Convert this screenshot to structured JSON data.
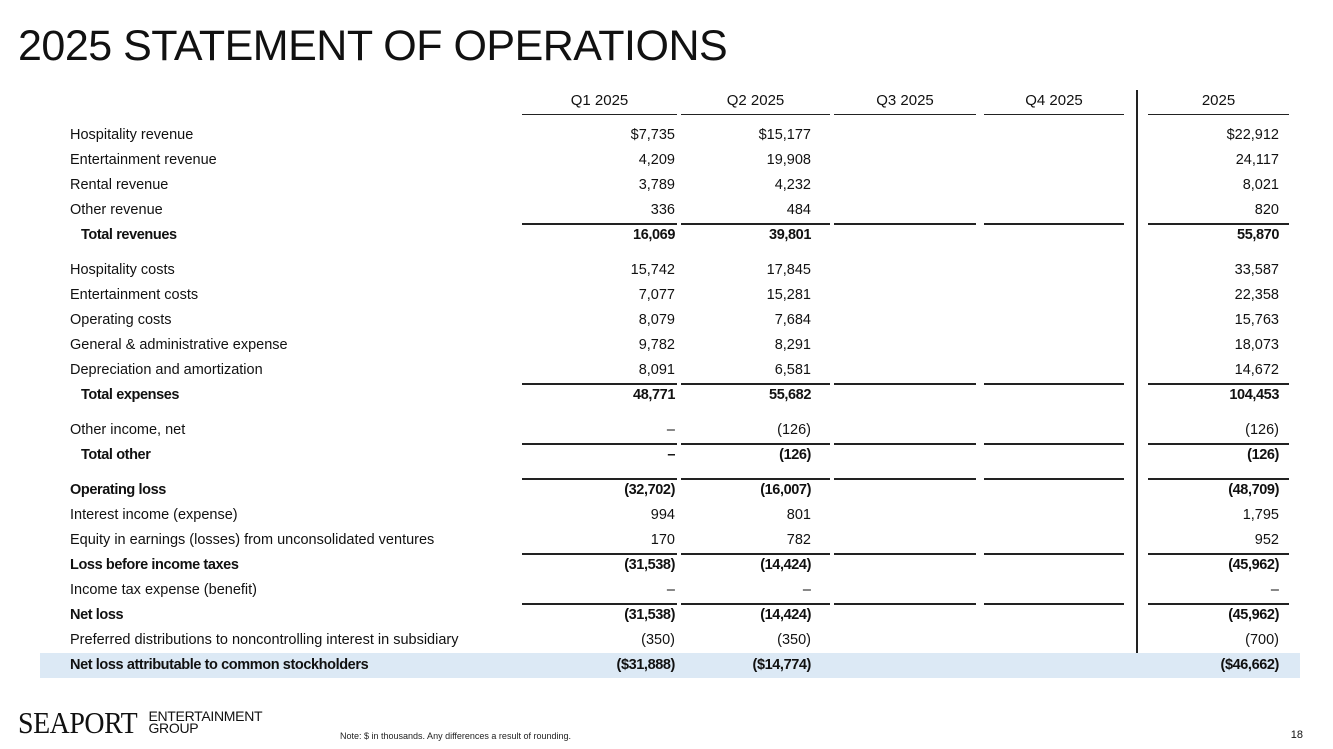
{
  "title": "2025 STATEMENT OF OPERATIONS",
  "columns": [
    "Q1 2025",
    "Q2 2025",
    "Q3 2025",
    "Q4 2025",
    "2025"
  ],
  "rows": [
    {
      "label": "Hospitality revenue",
      "values": [
        "$7,735",
        "$15,177",
        "",
        "",
        "$22,912"
      ]
    },
    {
      "label": "Entertainment revenue",
      "values": [
        "4,209",
        "19,908",
        "",
        "",
        "24,117"
      ]
    },
    {
      "label": "Rental revenue",
      "values": [
        "3,789",
        "4,232",
        "",
        "",
        "8,021"
      ]
    },
    {
      "label": "Other revenue",
      "values": [
        "336",
        "484",
        "",
        "",
        "820"
      ]
    },
    {
      "label": "Total revenues",
      "values": [
        "16,069",
        "39,801",
        "",
        "",
        "55,870"
      ],
      "bold": true,
      "indent": true,
      "rule_above": true
    },
    {
      "label": "Hospitality costs",
      "values": [
        "15,742",
        "17,845",
        "",
        "",
        "33,587"
      ],
      "gap": true
    },
    {
      "label": "Entertainment costs",
      "values": [
        "7,077",
        "15,281",
        "",
        "",
        "22,358"
      ]
    },
    {
      "label": "Operating costs",
      "values": [
        "8,079",
        "7,684",
        "",
        "",
        "15,763"
      ]
    },
    {
      "label": "General & administrative expense",
      "values": [
        "9,782",
        "8,291",
        "",
        "",
        "18,073"
      ]
    },
    {
      "label": "Depreciation and amortization",
      "values": [
        "8,091",
        "6,581",
        "",
        "",
        "14,672"
      ]
    },
    {
      "label": "Total expenses",
      "values": [
        "48,771",
        "55,682",
        "",
        "",
        "104,453"
      ],
      "bold": true,
      "indent": true,
      "rule_above": true
    },
    {
      "label": "Other income, net",
      "values": [
        "–",
        "(126)",
        "",
        "",
        "(126)"
      ],
      "gap": true
    },
    {
      "label": "Total other",
      "values": [
        "–",
        "(126)",
        "",
        "",
        "(126)"
      ],
      "bold": true,
      "indent": true,
      "rule_above": true
    },
    {
      "label": "Operating loss",
      "values": [
        "(32,702)",
        "(16,007)",
        "",
        "",
        "(48,709)"
      ],
      "bold": true,
      "gap": true,
      "rule_above": true
    },
    {
      "label": "Interest income (expense)",
      "values": [
        "994",
        "801",
        "",
        "",
        "1,795"
      ]
    },
    {
      "label": "Equity in earnings (losses) from unconsolidated ventures",
      "values": [
        "170",
        "782",
        "",
        "",
        "952"
      ]
    },
    {
      "label": "Loss before income taxes",
      "values": [
        "(31,538)",
        "(14,424)",
        "",
        "",
        "(45,962)"
      ],
      "bold": true,
      "rule_above": true
    },
    {
      "label": "Income tax expense (benefit)",
      "values": [
        "–",
        "–",
        "",
        "",
        "–"
      ]
    },
    {
      "label": "Net loss",
      "values": [
        "(31,538)",
        "(14,424)",
        "",
        "",
        "(45,962)"
      ],
      "bold": true,
      "rule_above": true
    },
    {
      "label": "Preferred distributions to noncontrolling interest in subsidiary",
      "values": [
        "(350)",
        "(350)",
        "",
        "",
        "(700)"
      ]
    },
    {
      "label": "Net loss attributable to common stockholders",
      "values": [
        "($31,888)",
        "($14,774)",
        "",
        "",
        "($46,662)"
      ],
      "bold": true,
      "highlight": true
    }
  ],
  "highlight_color": "#dce9f5",
  "footer": {
    "logo_main": "SEAPORT",
    "logo_sub_1": "ENTERTAINMENT",
    "logo_sub_2": "GROUP",
    "note": "Note: $ in thousands. Any differences a result of rounding.",
    "page_number": "18"
  }
}
